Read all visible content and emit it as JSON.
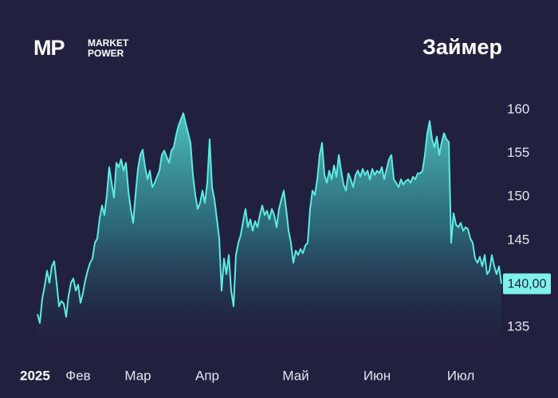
{
  "brand": {
    "mark": "MP",
    "lines": [
      "MARKET",
      "POWER"
    ]
  },
  "chart_data": {
    "type": "area",
    "title": "Займер",
    "year": "2025",
    "color": "#5eeae2",
    "values": [
      136.5,
      135.5,
      138.3,
      139.7,
      141.5,
      140.1,
      142.0,
      142.6,
      140.1,
      137.4,
      138.0,
      137.7,
      136.2,
      138.6,
      140.1,
      140.6,
      139.2,
      139.9,
      137.8,
      138.9,
      140.4,
      141.5,
      142.4,
      142.9,
      144.7,
      145.2,
      147.5,
      149.0,
      147.9,
      150.2,
      153.4,
      151.6,
      149.9,
      153.9,
      153.4,
      154.3,
      153.0,
      153.9,
      150.7,
      148.6,
      147.0,
      150.2,
      153.2,
      154.8,
      155.4,
      153.4,
      152.0,
      153.0,
      151.1,
      151.6,
      152.3,
      153.0,
      154.8,
      155.3,
      154.6,
      153.9,
      155.3,
      155.7,
      157.1,
      158.2,
      158.9,
      159.6,
      158.4,
      157.3,
      156.2,
      152.5,
      150.2,
      148.6,
      149.3,
      150.7,
      149.3,
      151.6,
      156.6,
      151.1,
      149.7,
      147.5,
      145.2,
      139.2,
      142.9,
      141.1,
      143.3,
      139.2,
      137.4,
      143.3,
      144.7,
      145.6,
      147.2,
      148.6,
      146.5,
      147.4,
      146.1,
      147.2,
      146.5,
      147.9,
      149.0,
      147.9,
      148.4,
      147.4,
      148.6,
      147.9,
      146.5,
      148.6,
      149.7,
      150.7,
      148.6,
      146.1,
      144.7,
      142.4,
      143.8,
      143.3,
      144.0,
      143.5,
      144.4,
      144.7,
      148.6,
      150.7,
      150.2,
      152.0,
      154.8,
      156.2,
      152.5,
      151.6,
      153.0,
      152.0,
      153.6,
      152.3,
      154.8,
      153.0,
      151.4,
      150.7,
      152.7,
      152.0,
      151.1,
      152.5,
      153.0,
      152.3,
      153.2,
      152.5,
      153.0,
      152.0,
      153.2,
      152.5,
      153.0,
      152.7,
      153.4,
      152.0,
      153.2,
      154.3,
      154.8,
      152.0,
      151.6,
      151.1,
      152.0,
      151.4,
      151.8,
      152.0,
      151.6,
      152.3,
      152.0,
      152.7,
      152.7,
      153.0,
      154.8,
      157.3,
      158.7,
      156.6,
      155.7,
      156.9,
      154.8,
      156.2,
      157.3,
      156.6,
      156.3,
      144.7,
      148.1,
      146.8,
      146.5,
      147.0,
      146.1,
      146.5,
      146.3,
      145.2,
      144.7,
      142.9,
      142.4,
      143.1,
      142.0,
      143.3,
      141.1,
      141.5,
      143.3,
      142.0,
      141.1,
      142.0,
      140.0
    ],
    "xlim": [
      0,
      194
    ],
    "xticks": [
      {
        "value": 17,
        "label": "Фев"
      },
      {
        "value": 42,
        "label": "Мар"
      },
      {
        "value": 71,
        "label": "Апр"
      },
      {
        "value": 108,
        "label": "Май"
      },
      {
        "value": 142,
        "label": "Июн"
      },
      {
        "value": 177,
        "label": "Июл"
      }
    ],
    "ylim": [
      133,
      162
    ],
    "yticks": [
      135,
      145,
      150,
      155,
      160
    ],
    "last_price": {
      "value": 140,
      "label": "140,00"
    }
  }
}
